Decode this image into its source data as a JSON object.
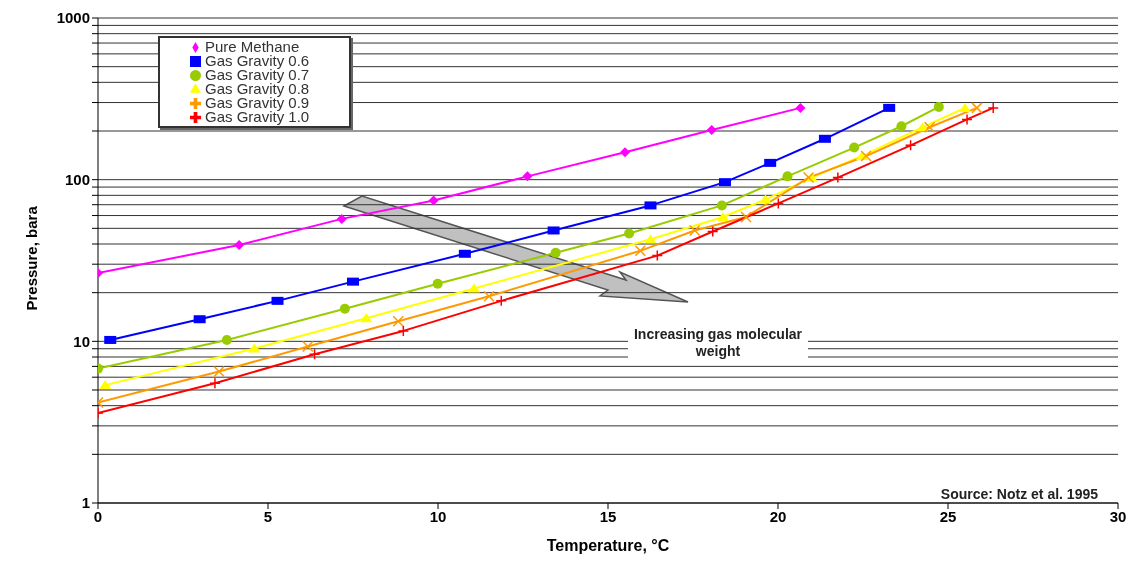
{
  "chart_data": {
    "type": "line",
    "xlabel": "Temperature, °C",
    "ylabel": "Pressure, bara",
    "xlim": [
      0,
      30
    ],
    "xticks": [
      0,
      5,
      10,
      15,
      20,
      25,
      30
    ],
    "ylim": [
      1,
      1000
    ],
    "log": "y",
    "yticks": [
      1,
      {
        "value": 2,
        "label": null
      },
      {
        "value": 3,
        "label": null
      },
      {
        "value": 4,
        "label": null
      },
      {
        "value": 5,
        "label": null
      },
      {
        "value": 6,
        "label": null
      },
      {
        "value": 7,
        "label": null
      },
      {
        "value": 8,
        "label": null
      },
      {
        "value": 9,
        "label": null
      },
      10,
      {
        "value": 20,
        "label": null
      },
      {
        "value": 30,
        "label": null
      },
      {
        "value": 40,
        "label": null
      },
      {
        "value": 50,
        "label": null
      },
      {
        "value": 60,
        "label": null
      },
      {
        "value": 70,
        "label": null
      },
      {
        "value": 80,
        "label": null
      },
      {
        "value": 90,
        "label": null
      },
      100,
      {
        "value": 200,
        "label": null
      },
      {
        "value": 300,
        "label": null
      },
      {
        "value": 400,
        "label": null
      },
      {
        "value": 500,
        "label": null
      },
      {
        "value": 600,
        "label": null
      },
      {
        "value": 700,
        "label": null
      },
      {
        "value": 800,
        "label": null
      },
      {
        "value": 900,
        "label": null
      },
      1000
    ],
    "grid": "y",
    "legend": "top left",
    "line_style": "solid",
    "annotations": [
      "Increasing gas molecular weight",
      "Source: Notz et al. 1995"
    ],
    "series": [
      {
        "name": "Pure Methane",
        "color": "#ff00ff",
        "marker": "diamond",
        "x": [
          0,
          4.15,
          7.17,
          9.87,
          12.63,
          15.5,
          18.05,
          20.66
        ],
        "values": [
          26.5,
          39.4,
          57.2,
          74.3,
          104.8,
          147.8,
          203,
          278
        ]
      },
      {
        "name": "Gas Gravity 0.6",
        "color": "#0000ff",
        "marker": "square",
        "x": [
          0.36,
          2.99,
          5.28,
          7.5,
          10.79,
          13.4,
          16.25,
          18.44,
          19.77,
          21.38,
          23.27
        ],
        "values": [
          10.2,
          13.7,
          17.8,
          23.4,
          34.8,
          48.5,
          69.3,
          96.5,
          127,
          179,
          278
        ]
      },
      {
        "name": "Gas Gravity 0.7",
        "color": "#99cc00",
        "marker": "circle",
        "x": [
          0,
          3.79,
          7.26,
          9.99,
          13.46,
          15.62,
          18.35,
          20.28,
          22.24,
          23.63,
          24.73
        ],
        "values": [
          6.78,
          10.2,
          15.9,
          22.7,
          35.3,
          46.5,
          69.3,
          104.8,
          158,
          214,
          282
        ]
      },
      {
        "name": "Gas Gravity 0.8",
        "color": "#ffff00",
        "marker": "triangle",
        "x": [
          0.21,
          4.6,
          7.89,
          11.06,
          16.25,
          18.38,
          19.63,
          20.99,
          22.47,
          24.25,
          25.5
        ],
        "values": [
          5.36,
          9.04,
          13.9,
          21.2,
          42.8,
          58.8,
          75.3,
          103,
          140,
          211,
          278
        ]
      },
      {
        "name": "Gas Gravity 0.9",
        "color": "#ff9900",
        "marker": "cross",
        "x": [
          0,
          3.56,
          6.17,
          8.83,
          11.5,
          15.95,
          17.55,
          19.06,
          20.9,
          22.59,
          24.46,
          25.85
        ],
        "values": [
          4.19,
          6.5,
          9.29,
          13.3,
          19,
          36.3,
          48.5,
          58.8,
          103,
          140,
          211,
          278
        ]
      },
      {
        "name": "Gas Gravity 1.0",
        "color": "#ff0000",
        "marker": "plus",
        "x": [
          0,
          3.44,
          6.37,
          8.98,
          11.86,
          16.45,
          18.08,
          20.01,
          21.76,
          23.9,
          25.56,
          26.33
        ],
        "values": [
          3.6,
          5.51,
          8.32,
          11.6,
          17.8,
          33.9,
          47.8,
          71.3,
          103,
          163,
          236,
          278
        ]
      }
    ]
  }
}
